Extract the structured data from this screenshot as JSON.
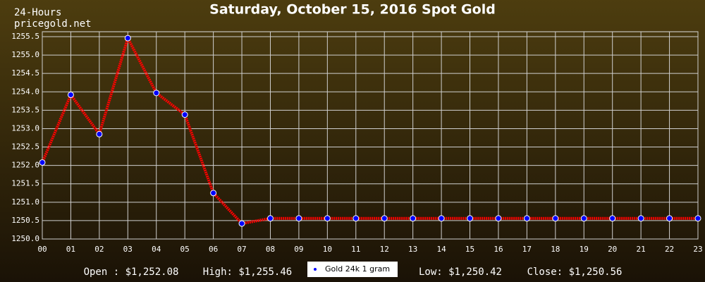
{
  "chart_data": {
    "type": "line",
    "title": "Saturday, October 15, 2016 Spot Gold",
    "subtitle": "24-Hours",
    "source": "pricegold.net",
    "categories": [
      "00",
      "01",
      "02",
      "03",
      "04",
      "05",
      "06",
      "07",
      "08",
      "09",
      "10",
      "11",
      "12",
      "13",
      "14",
      "15",
      "16",
      "17",
      "18",
      "19",
      "20",
      "21",
      "22",
      "23"
    ],
    "series": [
      {
        "name": "Gold 24k 1 gram",
        "color": "#ff0000",
        "marker_color": "#0000ff",
        "values": [
          1252.08,
          1253.92,
          1252.85,
          1255.46,
          1253.97,
          1253.38,
          1251.25,
          1250.42,
          1250.56,
          1250.56,
          1250.56,
          1250.56,
          1250.56,
          1250.56,
          1250.56,
          1250.56,
          1250.56,
          1250.56,
          1250.56,
          1250.56,
          1250.56,
          1250.56,
          1250.56,
          1250.56
        ]
      }
    ],
    "ylim": [
      1250,
      1255.5
    ],
    "yticks": [
      {
        "value": 1250,
        "label": "1250.0"
      },
      1250.5,
      {
        "value": 1251,
        "label": "1251.0"
      },
      1251.5,
      {
        "value": 1252,
        "label": "1252.0"
      },
      1252.5,
      {
        "value": 1253,
        "label": "1253.0"
      },
      1253.5,
      {
        "value": 1254,
        "label": "1254.0"
      },
      1254.5,
      {
        "value": 1255,
        "label": "1255.0"
      },
      1255.5
    ],
    "grid": true,
    "stats": [
      "Open : $1,252.08",
      "High: $1,255.46",
      "Low: $1,250.42",
      "Close: $1,250.56"
    ]
  }
}
